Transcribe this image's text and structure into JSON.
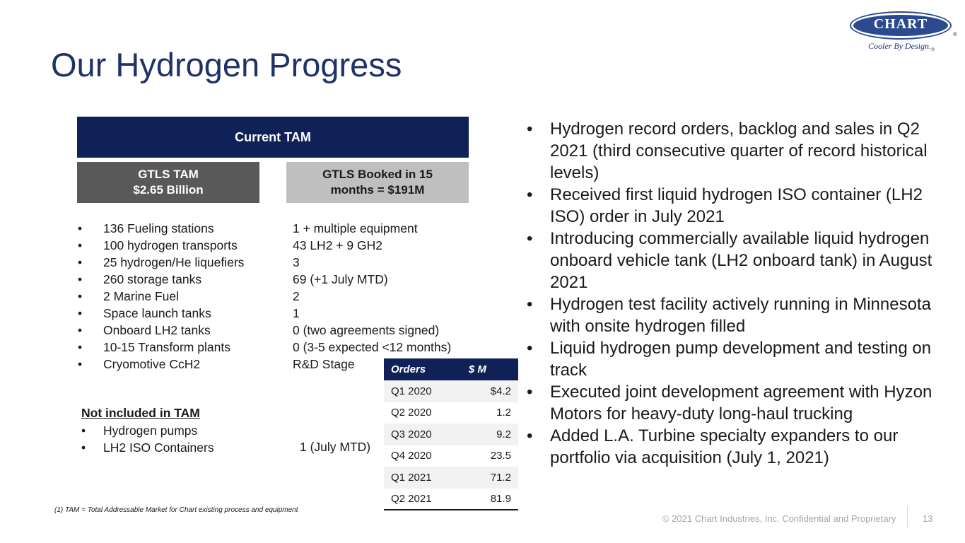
{
  "title": "Our Hydrogen Progress",
  "logo": {
    "brand": "CHART",
    "registered": "®",
    "tagline": "Cooler By Design.",
    "tagline_reg": "®"
  },
  "tam": {
    "header": "Current TAM",
    "gtls_tam_line1": "GTLS TAM",
    "gtls_tam_line2": "$2.65 Billion",
    "booked_line1": "GTLS Booked in 15",
    "booked_line2": "months = $191M",
    "bullet": "•",
    "items": [
      {
        "label": "136 Fueling stations",
        "booked": "1 + multiple equipment"
      },
      {
        "label": "100 hydrogen transports",
        "booked": "43 LH2 + 9 GH2"
      },
      {
        "label": "25 hydrogen/He liquefiers",
        "booked": "3"
      },
      {
        "label": "260 storage tanks",
        "booked": "69 (+1 July MTD)"
      },
      {
        "label": "2 Marine Fuel",
        "booked": "2"
      },
      {
        "label": "Space launch tanks",
        "booked": "1"
      },
      {
        "label": "Onboard LH2 tanks",
        "booked": "0 (two agreements signed)"
      },
      {
        "label": "10-15 Transform plants",
        "booked": "0 (3-5 expected <12 months)"
      },
      {
        "label": "Cryomotive CcH2",
        "booked": "R&D Stage"
      }
    ]
  },
  "not_included": {
    "heading": "Not included in TAM",
    "items": [
      "Hydrogen pumps",
      "LH2 ISO Containers"
    ],
    "lh2_iso_booked": "1 (July MTD)"
  },
  "orders_table": {
    "headers": [
      "Orders",
      "$ M"
    ],
    "rows": [
      {
        "period": "Q1 2020",
        "value": "$4.2"
      },
      {
        "period": "Q2 2020",
        "value": "1.2"
      },
      {
        "period": "Q3 2020",
        "value": "9.2"
      },
      {
        "period": "Q4 2020",
        "value": "23.5"
      },
      {
        "period": "Q1 2021",
        "value": "71.2"
      },
      {
        "period": "Q2 2021",
        "value": "81.9"
      }
    ]
  },
  "highlights": [
    "Hydrogen record orders, backlog and sales in Q2 2021 (third consecutive quarter of record historical levels)",
    "Received first liquid hydrogen ISO container (LH2 ISO) order in July 2021",
    "Introducing commercially available liquid hydrogen onboard vehicle tank (LH2 onboard tank) in August 2021",
    "Hydrogen test facility actively running in Minnesota with onsite hydrogen filled",
    "Liquid hydrogen pump development and testing on track",
    "Executed joint development agreement with Hyzon Motors for heavy-duty long-haul trucking",
    "Added L.A. Turbine specialty expanders to our portfolio via acquisition (July 1, 2021)"
  ],
  "footer": {
    "footnote": "(1)    TAM = Total Addressable Market for Chart existing process and equipment",
    "copyright": "© 2021 Chart Industries, Inc. Confidential and Proprietary",
    "page_number": "13"
  }
}
